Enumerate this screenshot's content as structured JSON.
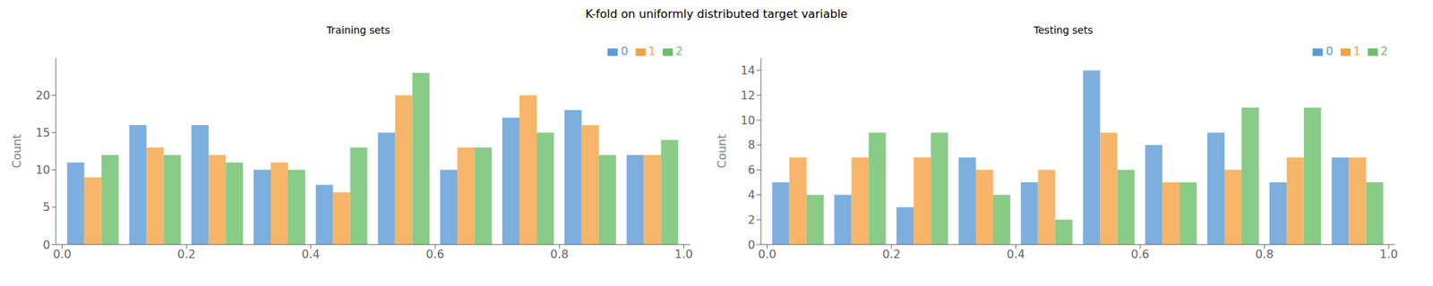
{
  "title": "K-fold on uniformly distributed target variable",
  "chart_data": [
    {
      "type": "bar",
      "title": "Training sets",
      "ylabel": "Count",
      "x": [
        0.05,
        0.15,
        0.25,
        0.35,
        0.45,
        0.55,
        0.65,
        0.75,
        0.85,
        0.95
      ],
      "series": [
        {
          "name": "0",
          "color": "#5b9bd5",
          "values": [
            11,
            16,
            16,
            10,
            8,
            15,
            10,
            17,
            18,
            12
          ]
        },
        {
          "name": "1",
          "color": "#f4a343",
          "values": [
            9,
            13,
            12,
            11,
            7,
            20,
            13,
            20,
            16,
            12
          ]
        },
        {
          "name": "2",
          "color": "#6abf69",
          "values": [
            12,
            12,
            11,
            10,
            13,
            23,
            13,
            15,
            12,
            14
          ]
        }
      ],
      "xlim": [
        -0.01,
        1.01
      ],
      "xticks": [
        {
          "value": 0.0,
          "label": "0.0"
        },
        0.2,
        0.4,
        0.6,
        0.8,
        {
          "value": 1.0,
          "label": "1.0"
        }
      ],
      "ylim": [
        0,
        25
      ],
      "yticks": [
        0,
        5,
        10,
        15,
        20
      ],
      "legend": "upper right",
      "grid": false
    },
    {
      "type": "bar",
      "title": "Testing sets",
      "ylabel": "Count",
      "x": [
        0.05,
        0.15,
        0.25,
        0.35,
        0.45,
        0.55,
        0.65,
        0.75,
        0.85,
        0.95
      ],
      "series": [
        {
          "name": "0",
          "color": "#5b9bd5",
          "values": [
            5,
            4,
            3,
            7,
            5,
            14,
            8,
            9,
            5,
            7
          ]
        },
        {
          "name": "1",
          "color": "#f4a343",
          "values": [
            7,
            7,
            7,
            6,
            6,
            9,
            5,
            6,
            7,
            7
          ]
        },
        {
          "name": "2",
          "color": "#6abf69",
          "values": [
            4,
            9,
            9,
            4,
            2,
            6,
            5,
            11,
            11,
            5
          ]
        }
      ],
      "xlim": [
        -0.01,
        1.01
      ],
      "xticks": [
        {
          "value": 0.0,
          "label": "0.0"
        },
        0.2,
        0.4,
        0.6,
        0.8,
        {
          "value": 1.0,
          "label": "1.0"
        }
      ],
      "ylim": [
        0,
        15
      ],
      "yticks": [
        0,
        2,
        4,
        6,
        8,
        10,
        12,
        14
      ],
      "legend": "upper right",
      "grid": false
    }
  ]
}
